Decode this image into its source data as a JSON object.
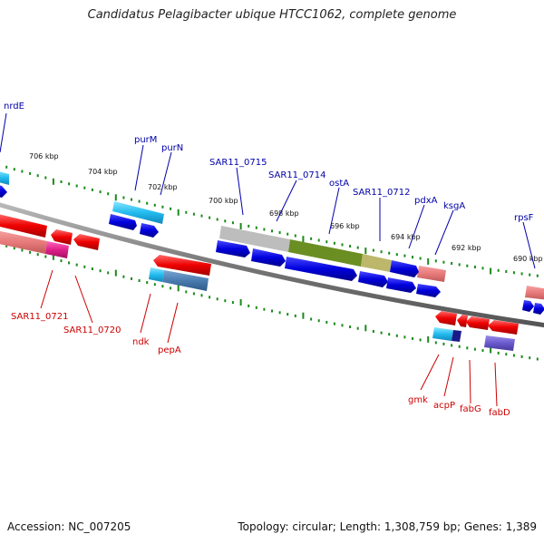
{
  "title": "Candidatus Pelagibacter ubique HTCC1062, complete genome",
  "footer": {
    "accession": "Accession: NC_007205",
    "topology": "Topology: circular; Length: 1,308,759 bp; Genes: 1,389"
  },
  "ticks": [
    "706 kbp",
    "704 kbp",
    "702 kbp",
    "700 kbp",
    "698 kbp",
    "696 kbp",
    "694 kbp",
    "692 kbp",
    "690 kbp"
  ],
  "forward_labels": [
    "nrdE",
    "purM",
    "purN",
    "SAR11_0715",
    "SAR11_0714",
    "ostA",
    "SAR11_0712",
    "pdxA",
    "ksgA",
    "rpsF"
  ],
  "reverse_labels": [
    "SAR11_0721",
    "SAR11_0720",
    "ndk",
    "pepA",
    "gmk",
    "acpP",
    "fabG",
    "fabD"
  ],
  "colors": {
    "forward_gene": "#0000dd",
    "reverse_gene": "#ee0000",
    "forward_label": "#0000aa",
    "reverse_label": "#cc0000",
    "backbone": "#888888",
    "tick": "#1a8a1a"
  }
}
